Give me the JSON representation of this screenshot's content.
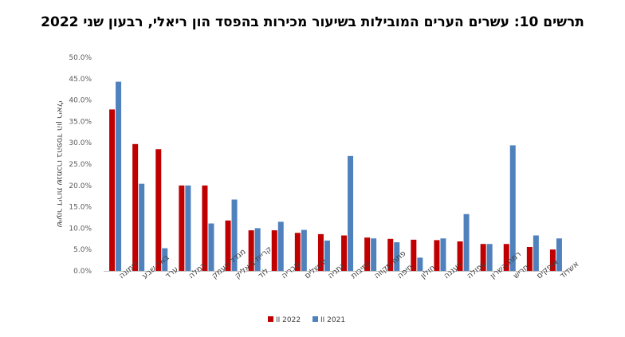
{
  "title": "תרשים 10: עשרים הערים המובילות בשיעור מכירות בהפסד הון ריאלי, רבעון שני 2022",
  "chart_data": {
    "type": "bar",
    "title": "תרשים 10: עשרים הערים המובילות בשיעור מכירות בהפסד הון ריאלי, רבעון שני 2022",
    "ylabel": "שיעור דירות שנמכרו בהפסד הון ריאלי",
    "xlabel": "",
    "ylim": [
      0,
      50
    ],
    "ytick_step": 5,
    "ytick_labels": [
      "0.0%",
      "5.0%",
      "10.0%",
      "15.0%",
      "20.0%",
      "25.0%",
      "30.0%",
      "35.0%",
      "40.0%",
      "45.0%",
      "50.0%"
    ],
    "grid": false,
    "legend_position": "bottom",
    "categories": [
      "דימונה",
      "באר שבע",
      "ערד",
      "רמלה",
      "מגדל העמק",
      "קריית ביאליק",
      "לוד",
      "טבריה",
      "ירושלים",
      "נתניה",
      "נתיבות",
      "פתח תקווה",
      "חיפה",
      "חולון",
      "רעננה",
      "עפולה",
      "רמת השרון",
      "חריש",
      "אופקים",
      "אשדוד"
    ],
    "series": [
      {
        "name": "II 2022",
        "color": "#c00000",
        "values": [
          37.8,
          29.7,
          28.5,
          20.0,
          20.0,
          11.8,
          9.5,
          9.5,
          8.9,
          8.6,
          8.3,
          7.8,
          7.5,
          7.3,
          7.2,
          6.9,
          6.3,
          6.3,
          5.6,
          5.0
        ]
      },
      {
        "name": "II 2021",
        "color": "#4f81bd",
        "values": [
          44.3,
          20.4,
          5.3,
          20.0,
          11.1,
          16.7,
          10.0,
          11.5,
          9.6,
          7.1,
          26.9,
          7.6,
          6.7,
          3.1,
          7.6,
          13.3,
          6.3,
          29.4,
          8.3,
          7.6
        ]
      }
    ]
  }
}
